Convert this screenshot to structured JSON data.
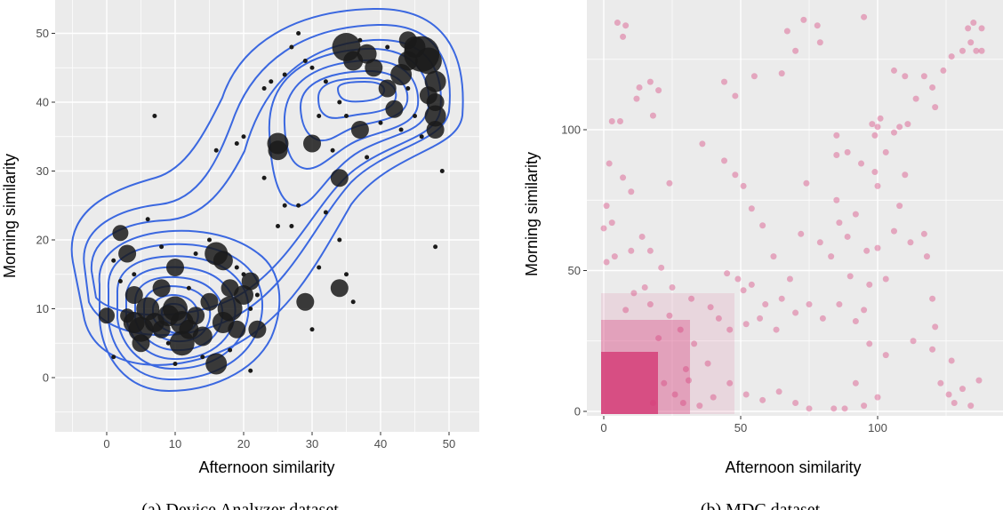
{
  "chart_data": [
    {
      "type": "scatter",
      "caption": "(a) Device Analyzer dataset",
      "xlabel": "Afternoon similarity",
      "ylabel": "Morning similarity",
      "xlim": [
        -8,
        54
      ],
      "ylim": [
        -8,
        55
      ],
      "xticks": [
        0,
        10,
        20,
        30,
        40,
        50
      ],
      "yticks": [
        0,
        10,
        20,
        30,
        40,
        50
      ],
      "grid": true,
      "colors": {
        "panel": "#ebebeb",
        "grid": "#ffffff",
        "points": "#1a1a1a",
        "contour": "#3b68e0"
      },
      "density_contours": true,
      "points": [
        {
          "x": 0,
          "y": 9,
          "s": 9
        },
        {
          "x": 2,
          "y": 21,
          "s": 9
        },
        {
          "x": 3,
          "y": 18,
          "s": 10
        },
        {
          "x": 3,
          "y": 9,
          "s": 8
        },
        {
          "x": 4,
          "y": 12,
          "s": 10
        },
        {
          "x": 4,
          "y": 8,
          "s": 12
        },
        {
          "x": 5,
          "y": 7,
          "s": 14
        },
        {
          "x": 5,
          "y": 5,
          "s": 10
        },
        {
          "x": 6,
          "y": 10,
          "s": 13
        },
        {
          "x": 7,
          "y": 8,
          "s": 11
        },
        {
          "x": 8,
          "y": 13,
          "s": 10
        },
        {
          "x": 8,
          "y": 7,
          "s": 10
        },
        {
          "x": 9,
          "y": 9,
          "s": 12
        },
        {
          "x": 10,
          "y": 16,
          "s": 10
        },
        {
          "x": 10,
          "y": 10,
          "s": 14
        },
        {
          "x": 11,
          "y": 8,
          "s": 13
        },
        {
          "x": 11,
          "y": 5,
          "s": 14
        },
        {
          "x": 12,
          "y": 7,
          "s": 11
        },
        {
          "x": 13,
          "y": 9,
          "s": 10
        },
        {
          "x": 14,
          "y": 6,
          "s": 11
        },
        {
          "x": 15,
          "y": 11,
          "s": 10
        },
        {
          "x": 16,
          "y": 2,
          "s": 12
        },
        {
          "x": 16,
          "y": 18,
          "s": 13
        },
        {
          "x": 17,
          "y": 17,
          "s": 11
        },
        {
          "x": 17,
          "y": 8,
          "s": 12
        },
        {
          "x": 18,
          "y": 10,
          "s": 14
        },
        {
          "x": 18,
          "y": 13,
          "s": 10
        },
        {
          "x": 19,
          "y": 7,
          "s": 10
        },
        {
          "x": 20,
          "y": 12,
          "s": 11
        },
        {
          "x": 21,
          "y": 14,
          "s": 10
        },
        {
          "x": 22,
          "y": 7,
          "s": 10
        },
        {
          "x": 29,
          "y": 11,
          "s": 10
        },
        {
          "x": 25,
          "y": 34,
          "s": 12
        },
        {
          "x": 25,
          "y": 33,
          "s": 11
        },
        {
          "x": 30,
          "y": 34,
          "s": 10
        },
        {
          "x": 34,
          "y": 29,
          "s": 10
        },
        {
          "x": 34,
          "y": 13,
          "s": 10
        },
        {
          "x": 35,
          "y": 48,
          "s": 16
        },
        {
          "x": 36,
          "y": 46,
          "s": 11
        },
        {
          "x": 37,
          "y": 36,
          "s": 10
        },
        {
          "x": 38,
          "y": 47,
          "s": 11
        },
        {
          "x": 39,
          "y": 45,
          "s": 10
        },
        {
          "x": 41,
          "y": 42,
          "s": 10
        },
        {
          "x": 42,
          "y": 39,
          "s": 10
        },
        {
          "x": 43,
          "y": 44,
          "s": 12
        },
        {
          "x": 44,
          "y": 46,
          "s": 11
        },
        {
          "x": 45,
          "y": 48,
          "s": 12
        },
        {
          "x": 46,
          "y": 47,
          "s": 20
        },
        {
          "x": 47,
          "y": 46,
          "s": 15
        },
        {
          "x": 48,
          "y": 43,
          "s": 12
        },
        {
          "x": 48,
          "y": 40,
          "s": 10
        },
        {
          "x": 48,
          "y": 38,
          "s": 12
        },
        {
          "x": 48,
          "y": 36,
          "s": 10
        },
        {
          "x": 47,
          "y": 41,
          "s": 10
        },
        {
          "x": 44,
          "y": 49,
          "s": 10
        },
        {
          "x": 1,
          "y": 17,
          "s": 2.5
        },
        {
          "x": 1,
          "y": 3,
          "s": 2.5
        },
        {
          "x": 2,
          "y": 14,
          "s": 2.5
        },
        {
          "x": 4,
          "y": 15,
          "s": 2.5
        },
        {
          "x": 6,
          "y": 23,
          "s": 2.5
        },
        {
          "x": 7,
          "y": 38,
          "s": 2.5
        },
        {
          "x": 8,
          "y": 19,
          "s": 2.5
        },
        {
          "x": 9,
          "y": 5,
          "s": 2.5
        },
        {
          "x": 10,
          "y": 2,
          "s": 2.5
        },
        {
          "x": 12,
          "y": 13,
          "s": 2.5
        },
        {
          "x": 13,
          "y": 18,
          "s": 2.5
        },
        {
          "x": 14,
          "y": 3,
          "s": 2.5
        },
        {
          "x": 15,
          "y": 20,
          "s": 2.5
        },
        {
          "x": 16,
          "y": 33,
          "s": 2.5
        },
        {
          "x": 18,
          "y": 4,
          "s": 2.5
        },
        {
          "x": 19,
          "y": 16,
          "s": 2.5
        },
        {
          "x": 19,
          "y": 34,
          "s": 2.5
        },
        {
          "x": 20,
          "y": 15,
          "s": 2.5
        },
        {
          "x": 20,
          "y": 35,
          "s": 2.5
        },
        {
          "x": 21,
          "y": 10,
          "s": 2.5
        },
        {
          "x": 21,
          "y": 1,
          "s": 2.5
        },
        {
          "x": 22,
          "y": 12,
          "s": 2.5
        },
        {
          "x": 23,
          "y": 29,
          "s": 2.5
        },
        {
          "x": 23,
          "y": 42,
          "s": 2.5
        },
        {
          "x": 24,
          "y": 43,
          "s": 2.5
        },
        {
          "x": 25,
          "y": 22,
          "s": 2.5
        },
        {
          "x": 26,
          "y": 44,
          "s": 2.5
        },
        {
          "x": 26,
          "y": 25,
          "s": 2.5
        },
        {
          "x": 27,
          "y": 22,
          "s": 2.5
        },
        {
          "x": 27,
          "y": 48,
          "s": 2.5
        },
        {
          "x": 28,
          "y": 50,
          "s": 2.5
        },
        {
          "x": 28,
          "y": 25,
          "s": 2.5
        },
        {
          "x": 30,
          "y": 45,
          "s": 2.5
        },
        {
          "x": 30,
          "y": 7,
          "s": 2.5
        },
        {
          "x": 31,
          "y": 16,
          "s": 2.5
        },
        {
          "x": 32,
          "y": 43,
          "s": 2.5
        },
        {
          "x": 32,
          "y": 24,
          "s": 2.5
        },
        {
          "x": 33,
          "y": 33,
          "s": 2.5
        },
        {
          "x": 34,
          "y": 40,
          "s": 2.5
        },
        {
          "x": 34,
          "y": 20,
          "s": 2.5
        },
        {
          "x": 35,
          "y": 38,
          "s": 2.5
        },
        {
          "x": 35,
          "y": 15,
          "s": 2.5
        },
        {
          "x": 36,
          "y": 11,
          "s": 2.5
        },
        {
          "x": 37,
          "y": 49,
          "s": 2.5
        },
        {
          "x": 38,
          "y": 32,
          "s": 2.5
        },
        {
          "x": 40,
          "y": 37,
          "s": 2.5
        },
        {
          "x": 41,
          "y": 48,
          "s": 2.5
        },
        {
          "x": 43,
          "y": 36,
          "s": 2.5
        },
        {
          "x": 44,
          "y": 42,
          "s": 2.5
        },
        {
          "x": 45,
          "y": 38,
          "s": 2.5
        },
        {
          "x": 46,
          "y": 35,
          "s": 2.5
        },
        {
          "x": 48,
          "y": 19,
          "s": 2.5
        },
        {
          "x": 49,
          "y": 30,
          "s": 2.5
        },
        {
          "x": 29,
          "y": 46,
          "s": 2.5
        },
        {
          "x": 31,
          "y": 38,
          "s": 2.5
        }
      ]
    },
    {
      "type": "scatter",
      "caption": "(b) MDC dataset",
      "xlabel": "Afternoon similarity",
      "ylabel": "Morning similarity",
      "xlim": [
        -7,
        145
      ],
      "ylim": [
        -3,
        145
      ],
      "xticks": [
        0,
        50,
        100
      ],
      "yticks": [
        0,
        50,
        100
      ],
      "grid": true,
      "colors": {
        "panel": "#ebebeb",
        "grid": "#ffffff",
        "points": "#d63f7a"
      },
      "points": [
        {
          "x": 5,
          "y": 138
        },
        {
          "x": 8,
          "y": 137
        },
        {
          "x": 7,
          "y": 133
        },
        {
          "x": 17,
          "y": 117
        },
        {
          "x": 20,
          "y": 114
        },
        {
          "x": 13,
          "y": 115
        },
        {
          "x": 3,
          "y": 103
        },
        {
          "x": 6,
          "y": 103
        },
        {
          "x": 12,
          "y": 111
        },
        {
          "x": 18,
          "y": 105
        },
        {
          "x": 44,
          "y": 117
        },
        {
          "x": 48,
          "y": 112
        },
        {
          "x": 55,
          "y": 119
        },
        {
          "x": 65,
          "y": 120
        },
        {
          "x": 67,
          "y": 135
        },
        {
          "x": 73,
          "y": 139
        },
        {
          "x": 78,
          "y": 137
        },
        {
          "x": 79,
          "y": 131
        },
        {
          "x": 70,
          "y": 128
        },
        {
          "x": 95,
          "y": 140
        },
        {
          "x": 106,
          "y": 121
        },
        {
          "x": 110,
          "y": 119
        },
        {
          "x": 117,
          "y": 119
        },
        {
          "x": 120,
          "y": 115
        },
        {
          "x": 114,
          "y": 111
        },
        {
          "x": 121,
          "y": 108
        },
        {
          "x": 124,
          "y": 121
        },
        {
          "x": 127,
          "y": 126
        },
        {
          "x": 131,
          "y": 128
        },
        {
          "x": 133,
          "y": 136
        },
        {
          "x": 135,
          "y": 138
        },
        {
          "x": 134,
          "y": 131
        },
        {
          "x": 138,
          "y": 136
        },
        {
          "x": 138,
          "y": 128
        },
        {
          "x": 136,
          "y": 128
        },
        {
          "x": 101,
          "y": 104
        },
        {
          "x": 100,
          "y": 101
        },
        {
          "x": 99,
          "y": 98
        },
        {
          "x": 98,
          "y": 102
        },
        {
          "x": 103,
          "y": 92
        },
        {
          "x": 108,
          "y": 101
        },
        {
          "x": 111,
          "y": 102
        },
        {
          "x": 106,
          "y": 99
        },
        {
          "x": 99,
          "y": 85
        },
        {
          "x": 100,
          "y": 80
        },
        {
          "x": 94,
          "y": 88
        },
        {
          "x": 85,
          "y": 98
        },
        {
          "x": 89,
          "y": 92
        },
        {
          "x": 85,
          "y": 91
        },
        {
          "x": 74,
          "y": 81
        },
        {
          "x": 51,
          "y": 80
        },
        {
          "x": 48,
          "y": 84
        },
        {
          "x": 44,
          "y": 89
        },
        {
          "x": 36,
          "y": 95
        },
        {
          "x": 24,
          "y": 81
        },
        {
          "x": 10,
          "y": 78
        },
        {
          "x": 7,
          "y": 83
        },
        {
          "x": 2,
          "y": 88
        },
        {
          "x": 1,
          "y": 73
        },
        {
          "x": 0,
          "y": 65
        },
        {
          "x": 3,
          "y": 67
        },
        {
          "x": 1,
          "y": 53
        },
        {
          "x": 4,
          "y": 55
        },
        {
          "x": 10,
          "y": 57
        },
        {
          "x": 14,
          "y": 62
        },
        {
          "x": 17,
          "y": 57
        },
        {
          "x": 21,
          "y": 51
        },
        {
          "x": 25,
          "y": 44
        },
        {
          "x": 32,
          "y": 40
        },
        {
          "x": 39,
          "y": 37
        },
        {
          "x": 42,
          "y": 33
        },
        {
          "x": 45,
          "y": 49
        },
        {
          "x": 49,
          "y": 47
        },
        {
          "x": 51,
          "y": 43
        },
        {
          "x": 54,
          "y": 45
        },
        {
          "x": 46,
          "y": 29
        },
        {
          "x": 52,
          "y": 31
        },
        {
          "x": 57,
          "y": 33
        },
        {
          "x": 63,
          "y": 29
        },
        {
          "x": 59,
          "y": 38
        },
        {
          "x": 65,
          "y": 40
        },
        {
          "x": 70,
          "y": 35
        },
        {
          "x": 75,
          "y": 38
        },
        {
          "x": 80,
          "y": 33
        },
        {
          "x": 86,
          "y": 38
        },
        {
          "x": 92,
          "y": 32
        },
        {
          "x": 95,
          "y": 36
        },
        {
          "x": 97,
          "y": 45
        },
        {
          "x": 103,
          "y": 47
        },
        {
          "x": 100,
          "y": 58
        },
        {
          "x": 106,
          "y": 64
        },
        {
          "x": 112,
          "y": 60
        },
        {
          "x": 117,
          "y": 63
        },
        {
          "x": 118,
          "y": 55
        },
        {
          "x": 120,
          "y": 40
        },
        {
          "x": 121,
          "y": 30
        },
        {
          "x": 120,
          "y": 22
        },
        {
          "x": 123,
          "y": 10
        },
        {
          "x": 126,
          "y": 6
        },
        {
          "x": 128,
          "y": 3
        },
        {
          "x": 131,
          "y": 8
        },
        {
          "x": 134,
          "y": 2
        },
        {
          "x": 137,
          "y": 11
        },
        {
          "x": 127,
          "y": 18
        },
        {
          "x": 113,
          "y": 25
        },
        {
          "x": 103,
          "y": 20
        },
        {
          "x": 97,
          "y": 24
        },
        {
          "x": 92,
          "y": 10
        },
        {
          "x": 88,
          "y": 1
        },
        {
          "x": 95,
          "y": 2
        },
        {
          "x": 100,
          "y": 5
        },
        {
          "x": 84,
          "y": 1
        },
        {
          "x": 75,
          "y": 1
        },
        {
          "x": 70,
          "y": 3
        },
        {
          "x": 64,
          "y": 7
        },
        {
          "x": 58,
          "y": 4
        },
        {
          "x": 52,
          "y": 6
        },
        {
          "x": 46,
          "y": 10
        },
        {
          "x": 40,
          "y": 5
        },
        {
          "x": 35,
          "y": 2
        },
        {
          "x": 38,
          "y": 17
        },
        {
          "x": 30,
          "y": 15
        },
        {
          "x": 33,
          "y": 24
        },
        {
          "x": 28,
          "y": 29
        },
        {
          "x": 24,
          "y": 34
        },
        {
          "x": 20,
          "y": 26
        },
        {
          "x": 17,
          "y": 38
        },
        {
          "x": 15,
          "y": 44
        },
        {
          "x": 11,
          "y": 42
        },
        {
          "x": 8,
          "y": 36
        },
        {
          "x": 22,
          "y": 10
        },
        {
          "x": 26,
          "y": 6
        },
        {
          "x": 29,
          "y": 3
        },
        {
          "x": 31,
          "y": 11
        },
        {
          "x": 18,
          "y": 3
        },
        {
          "x": 86,
          "y": 67
        },
        {
          "x": 89,
          "y": 62
        },
        {
          "x": 92,
          "y": 70
        },
        {
          "x": 96,
          "y": 57
        },
        {
          "x": 108,
          "y": 73
        },
        {
          "x": 110,
          "y": 84
        },
        {
          "x": 85,
          "y": 75
        },
        {
          "x": 79,
          "y": 60
        },
        {
          "x": 83,
          "y": 55
        },
        {
          "x": 90,
          "y": 48
        },
        {
          "x": 62,
          "y": 55
        },
        {
          "x": 68,
          "y": 47
        },
        {
          "x": 72,
          "y": 63
        },
        {
          "x": 58,
          "y": 66
        },
        {
          "x": 54,
          "y": 72
        }
      ]
    }
  ]
}
